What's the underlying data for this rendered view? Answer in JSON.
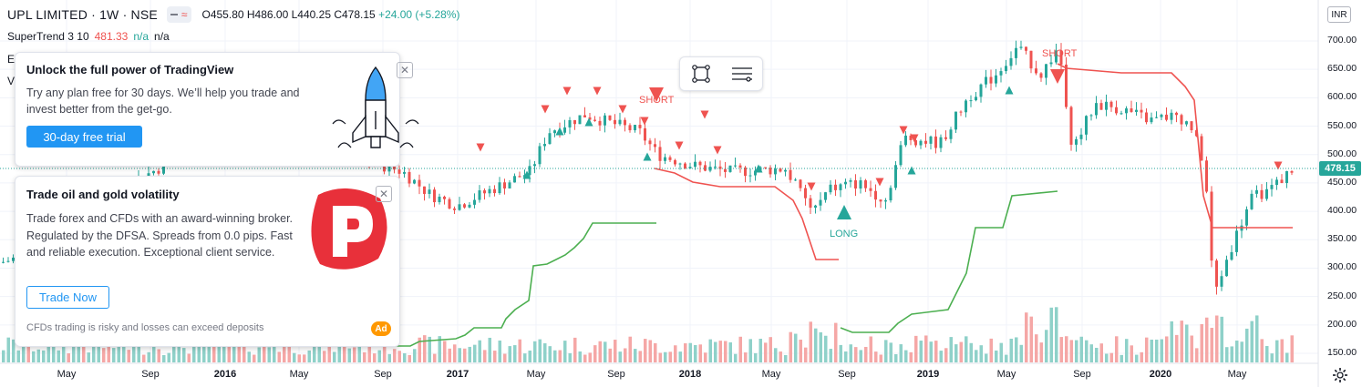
{
  "header": {
    "symbol": "UPL LIMITED · 1W · NSE",
    "ohlc": {
      "o": "O455.80",
      "h": "H486.00",
      "l": "L440.25",
      "c": "C478.15",
      "chg": "+24.00 (+5.28%)"
    }
  },
  "indicator": {
    "name": "SuperTrend 3 10",
    "value": "481.33",
    "na1": "n/a",
    "na2": "n/a"
  },
  "side_letters": [
    "E",
    "V"
  ],
  "toolbar": {
    "items": [
      "rectangle-tool-icon",
      "settings-lines-icon"
    ]
  },
  "promo_tv": {
    "title": "Unlock the full power of TradingView",
    "text": "Try any plan free for 30 days. We’ll help you trade and invest better from the get-go.",
    "button": "30-day free trial"
  },
  "promo_ad": {
    "title": "Trade oil and gold volatility",
    "text": "Trade forex and CFDs with an award-winning broker. Regulated by the DFSA. Spreads from 0.0 pips. Fast and reliable execution. Exceptional client service.",
    "button": "Trade Now",
    "disclaimer": "CFDs trading is risky and losses can exceed deposits",
    "badge": "Ad"
  },
  "price_axis": {
    "currency": "INR",
    "last_price": "478.15",
    "labels": [
      "700.00",
      "650.00",
      "600.00",
      "550.00",
      "500.00",
      "450.00",
      "400.00",
      "350.00",
      "300.00",
      "250.00",
      "200.00",
      "150.00"
    ]
  },
  "time_axis": {
    "labels": [
      {
        "text": "May",
        "year": false
      },
      {
        "text": "Sep",
        "year": false
      },
      {
        "text": "2016",
        "year": true
      },
      {
        "text": "May",
        "year": false
      },
      {
        "text": "Sep",
        "year": false
      },
      {
        "text": "2017",
        "year": true
      },
      {
        "text": "May",
        "year": false
      },
      {
        "text": "Sep",
        "year": false
      },
      {
        "text": "2018",
        "year": true
      },
      {
        "text": "May",
        "year": false
      },
      {
        "text": "Sep",
        "year": false
      },
      {
        "text": "2019",
        "year": true
      },
      {
        "text": "May",
        "year": false
      },
      {
        "text": "Sep",
        "year": false
      },
      {
        "text": "2020",
        "year": true
      },
      {
        "text": "May",
        "year": false
      }
    ]
  },
  "signals": [
    {
      "text": "SHORT",
      "type": "short"
    },
    {
      "text": "LONG",
      "type": "long"
    },
    {
      "text": "SHORT",
      "type": "short"
    }
  ],
  "colors": {
    "up": "#26a69a",
    "down": "#ef5350",
    "trend_up": "#4caf50",
    "trend_down": "#ef5350",
    "accent": "#2196f3"
  },
  "chart_data": {
    "type": "candlestick",
    "interval": "1W",
    "ylim": [
      120,
      730
    ],
    "last": 478.15,
    "supertrend_last": 481.33,
    "series": [
      {
        "name": "SuperTrend 3 10",
        "shape": "step-line",
        "values": []
      }
    ]
  }
}
